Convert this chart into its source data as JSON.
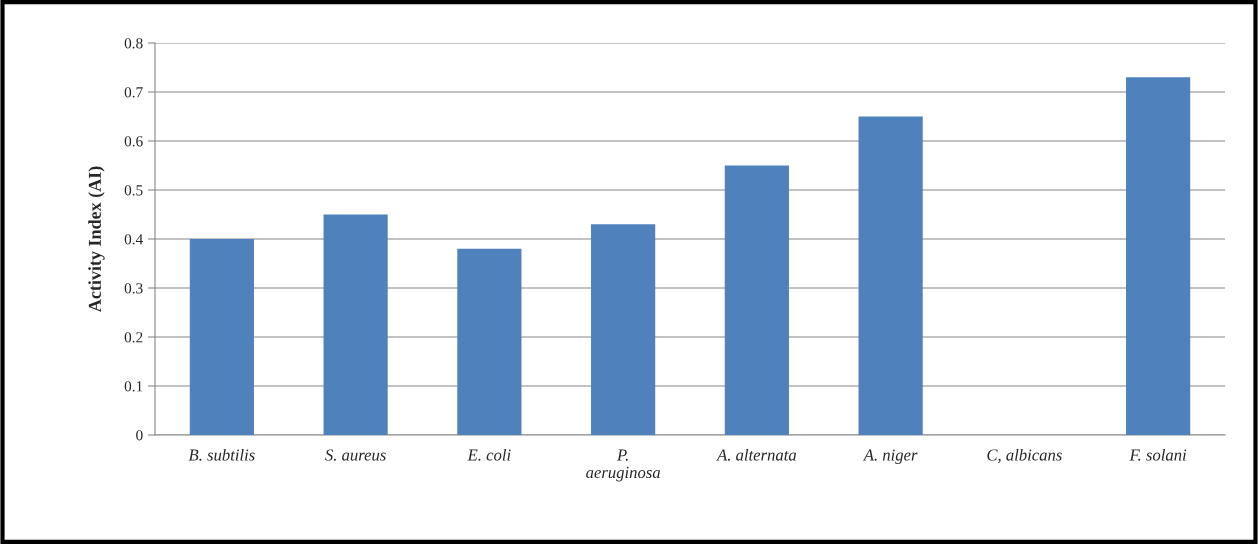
{
  "chart_data": {
    "type": "bar",
    "ylabel": "Activity Index (AI)",
    "categories": [
      "B. subtilis",
      "S. aureus",
      "E. coli",
      "P. aeruginosa",
      "A. alternata",
      "A. niger",
      "C, albicans",
      "F. solani"
    ],
    "values": [
      0.4,
      0.45,
      0.38,
      0.43,
      0.55,
      0.65,
      null,
      0.73
    ],
    "color": "#4f81bd",
    "ylim": [
      0,
      0.8
    ],
    "yticks": [
      0,
      0.1,
      0.2,
      0.3,
      0.4,
      0.5,
      0.6,
      0.7,
      0.8
    ],
    "grid": "y"
  }
}
